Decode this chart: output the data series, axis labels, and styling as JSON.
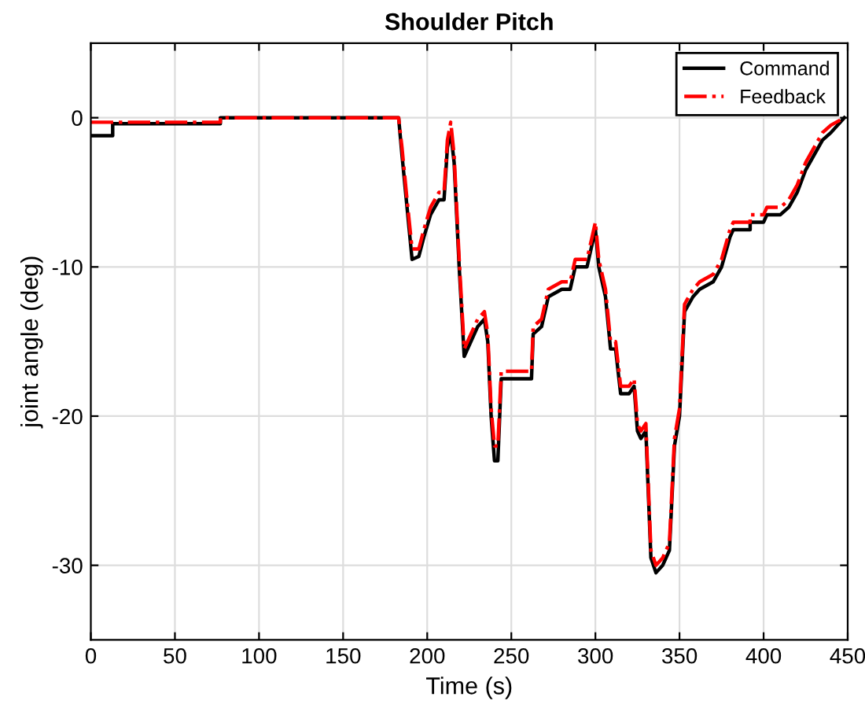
{
  "chart_data": {
    "type": "line",
    "title": "Shoulder Pitch",
    "xlabel": "Time (s)",
    "ylabel": "joint angle (deg)",
    "xlim": [
      0,
      450
    ],
    "ylim": [
      -35,
      5
    ],
    "xticks": [
      0,
      50,
      100,
      150,
      200,
      250,
      300,
      350,
      400,
      450
    ],
    "yticks": [
      -30,
      -20,
      -10,
      0
    ],
    "grid": true,
    "legend": "top right",
    "series": [
      {
        "name": "Command",
        "color": "#000000",
        "line_style": "solid",
        "x": [
          0,
          13,
          13,
          77,
          77,
          183,
          185,
          188,
          191,
          195,
          198,
          202,
          207,
          210,
          212,
          214,
          216,
          219,
          222,
          226,
          230,
          234,
          236,
          238,
          240,
          242,
          244,
          262,
          263,
          268,
          272,
          280,
          285,
          288,
          295,
          298,
          300,
          302,
          306,
          309,
          312,
          315,
          320,
          323,
          325,
          327,
          330,
          333,
          336,
          340,
          344,
          347,
          350,
          353,
          358,
          362,
          370,
          375,
          380,
          382,
          392,
          392,
          400,
          402,
          410,
          415,
          420,
          425,
          435,
          440,
          448
        ],
        "values": [
          -1.2,
          -1.2,
          -0.4,
          -0.4,
          0,
          0,
          -2.5,
          -6,
          -9.5,
          -9.3,
          -8,
          -6.5,
          -5.5,
          -5.5,
          -2,
          -1,
          -3,
          -10,
          -16,
          -15,
          -14,
          -13.5,
          -15,
          -20,
          -23,
          -23,
          -17.5,
          -17.5,
          -14.5,
          -14,
          -12,
          -11.5,
          -11.5,
          -10,
          -10,
          -8.5,
          -7.5,
          -10,
          -12,
          -15.5,
          -15.5,
          -18.5,
          -18.5,
          -18,
          -21,
          -21.5,
          -21,
          -29.5,
          -30.5,
          -30,
          -29,
          -22,
          -20,
          -13,
          -12,
          -11.5,
          -11,
          -10,
          -8,
          -7.5,
          -7.5,
          -7,
          -7,
          -6.5,
          -6.5,
          -6,
          -5,
          -3.5,
          -1.5,
          -1,
          0
        ]
      },
      {
        "name": "Feedback",
        "color": "#ff0000",
        "line_style": "dashdot",
        "x": [
          0,
          77,
          77,
          183,
          185,
          188,
          191,
          195,
          198,
          202,
          207,
          210,
          212,
          214,
          216,
          219,
          222,
          226,
          230,
          234,
          236,
          238,
          240,
          242,
          244,
          262,
          263,
          268,
          272,
          280,
          285,
          288,
          295,
          298,
          300,
          302,
          306,
          309,
          312,
          315,
          320,
          323,
          325,
          327,
          330,
          333,
          336,
          340,
          344,
          347,
          350,
          353,
          358,
          362,
          370,
          375,
          380,
          382,
          392,
          392,
          400,
          402,
          410,
          415,
          420,
          425,
          435,
          440,
          448
        ],
        "values": [
          -0.3,
          -0.3,
          0,
          0,
          -2,
          -5.5,
          -8.8,
          -8.8,
          -7.5,
          -6,
          -5,
          -5,
          -1.5,
          -0.3,
          -2.5,
          -9.5,
          -15.5,
          -14.5,
          -13.5,
          -13,
          -14.5,
          -19.5,
          -22,
          -22,
          -17,
          -17,
          -14,
          -13.5,
          -11.5,
          -11,
          -11,
          -9.5,
          -9.5,
          -8,
          -7,
          -9.5,
          -11.5,
          -15,
          -15,
          -18,
          -18,
          -17.5,
          -20.5,
          -21,
          -20.5,
          -29,
          -30,
          -29.5,
          -28.5,
          -21.5,
          -19.5,
          -12.5,
          -11.5,
          -11,
          -10.5,
          -9.5,
          -7.5,
          -7,
          -7,
          -6.5,
          -6.5,
          -6,
          -6,
          -5.5,
          -4.5,
          -3,
          -1,
          -0.5,
          0
        ]
      }
    ]
  }
}
